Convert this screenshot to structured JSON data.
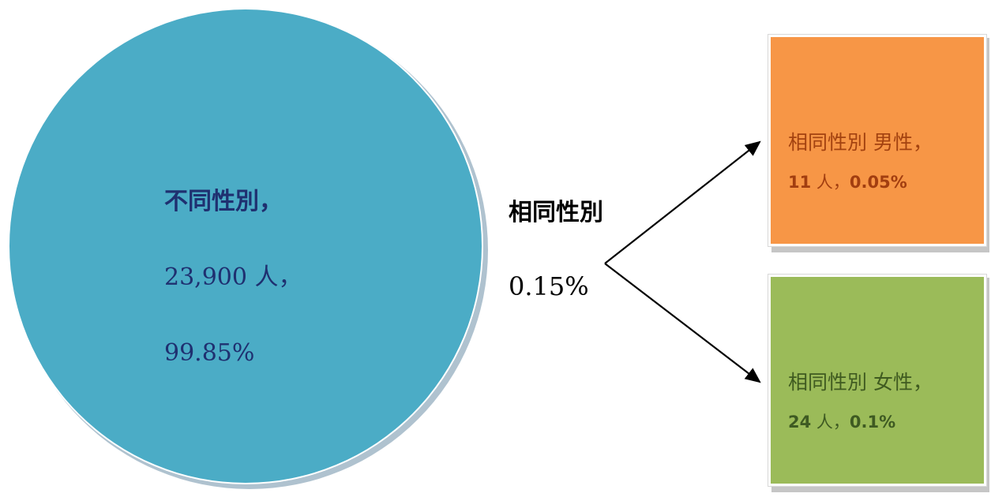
{
  "circle": {
    "line1": "不同性別，",
    "line2": "23,900 人，",
    "line3": "99.85%",
    "color": "#4bacc6"
  },
  "middle": {
    "title": "相同性別",
    "percent": "0.15%"
  },
  "male_box": {
    "line1": "相同性別 男性，",
    "count": "11",
    "unit": "人，",
    "percent": "0.05%",
    "color": "#f79646"
  },
  "female_box": {
    "line1": "相同性別 女性，",
    "count": "24",
    "unit": "人，",
    "percent": "0.1%",
    "color": "#9bbb59"
  }
}
